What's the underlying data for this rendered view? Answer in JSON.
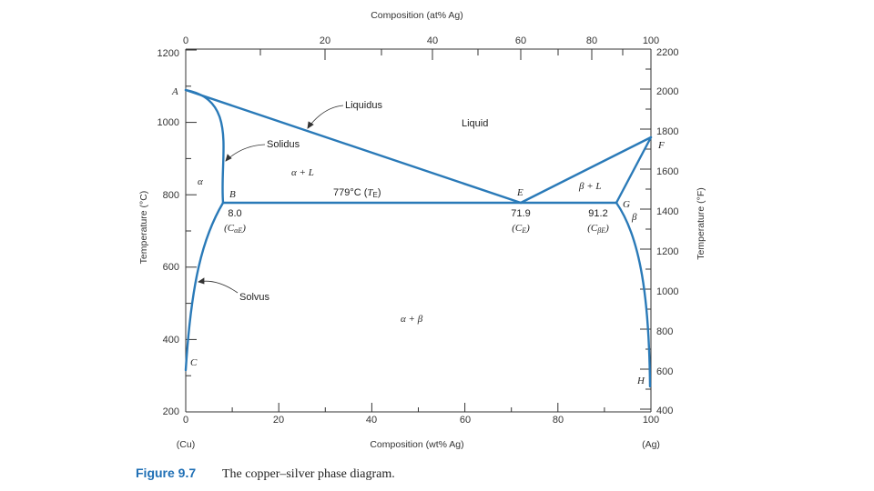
{
  "figure": {
    "number": "Figure 9.7",
    "caption": "The copper–silver phase diagram."
  },
  "colors": {
    "curve": "#2a7ab8",
    "axis": "#333333",
    "text": "#222222"
  },
  "axes": {
    "bottom_title": "Composition (wt% Ag)",
    "top_title": "Composition (at% Ag)",
    "left_title": "Temperature (°C)",
    "right_title": "Temperature (°F)",
    "left_end_label": "(Cu)",
    "right_end_label": "(Ag)",
    "bottom_ticks": [
      "0",
      "20",
      "40",
      "60",
      "80",
      "100"
    ],
    "top_ticks": [
      "0",
      "20",
      "40",
      "60",
      "80",
      "100"
    ],
    "left_ticks": [
      "200",
      "400",
      "600",
      "800",
      "1000",
      "1200"
    ],
    "right_ticks": [
      "400",
      "600",
      "800",
      "1000",
      "1200",
      "1400",
      "1600",
      "1800",
      "2000",
      "2200"
    ]
  },
  "regions": {
    "liquid": "Liquid",
    "alpha": "α",
    "alpha_l": "α + L",
    "beta_l": "β + L",
    "beta": "β",
    "alpha_beta": "α + β"
  },
  "labels": {
    "liquidus": "Liquidus",
    "solidus": "Solidus",
    "solvus": "Solvus",
    "eutectic_temp_prefix": "779°C (",
    "eutectic_temp_var": "T",
    "eutectic_temp_sub": "E",
    "eutectic_temp_suffix": ")",
    "c_alpha_e_value": "8.0",
    "c_alpha_e_text": "C",
    "c_alpha_e_sub": "αE",
    "c_e_value": "71.9",
    "c_e_text": "C",
    "c_e_sub": "E",
    "c_beta_e_value": "91.2",
    "c_beta_e_text": "C",
    "c_beta_e_sub": "βE"
  },
  "points": {
    "A": "A",
    "B": "B",
    "C": "C",
    "E": "E",
    "F": "F",
    "G": "G",
    "H": "H"
  }
}
